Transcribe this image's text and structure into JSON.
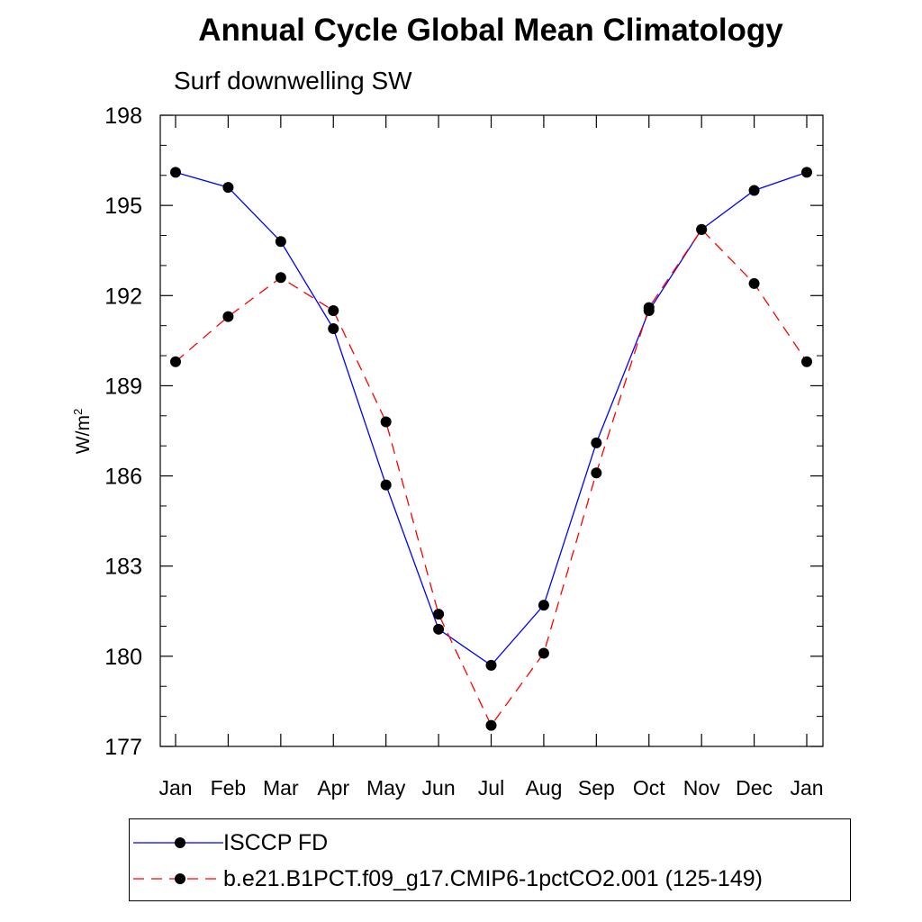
{
  "chart_data": {
    "type": "line",
    "title": "Annual Cycle Global Mean Climatology",
    "subtitle": "Surf downwelling SW",
    "ylabel": "W/m",
    "ylabel_superscript": "2",
    "xlabel": "",
    "categories": [
      "Jan",
      "Feb",
      "Mar",
      "Apr",
      "May",
      "Jun",
      "Jul",
      "Aug",
      "Sep",
      "Oct",
      "Nov",
      "Dec",
      "Jan"
    ],
    "ylim": [
      177,
      198
    ],
    "yticks": [
      177,
      180,
      183,
      186,
      189,
      192,
      195,
      198
    ],
    "ytick_labels": [
      "177",
      "180",
      "183",
      "186",
      "189",
      "192",
      "195",
      "198"
    ],
    "series": [
      {
        "name": "ISCCP FD",
        "color": "#0000ff",
        "dash": "solid",
        "values": [
          196.1,
          195.6,
          193.8,
          190.9,
          185.7,
          180.9,
          179.7,
          181.7,
          187.1,
          191.5,
          194.2,
          195.5,
          196.1
        ]
      },
      {
        "name": "b.e21.B1PCT.f09_g17.CMIP6-1pctCO2.001 (125-149)",
        "color": "#ff0000",
        "dash": "dashed",
        "values": [
          189.8,
          191.3,
          192.6,
          191.5,
          187.8,
          181.4,
          177.7,
          180.1,
          186.1,
          191.6,
          194.2,
          192.4,
          189.8
        ]
      }
    ],
    "legend_position": "bottom"
  }
}
